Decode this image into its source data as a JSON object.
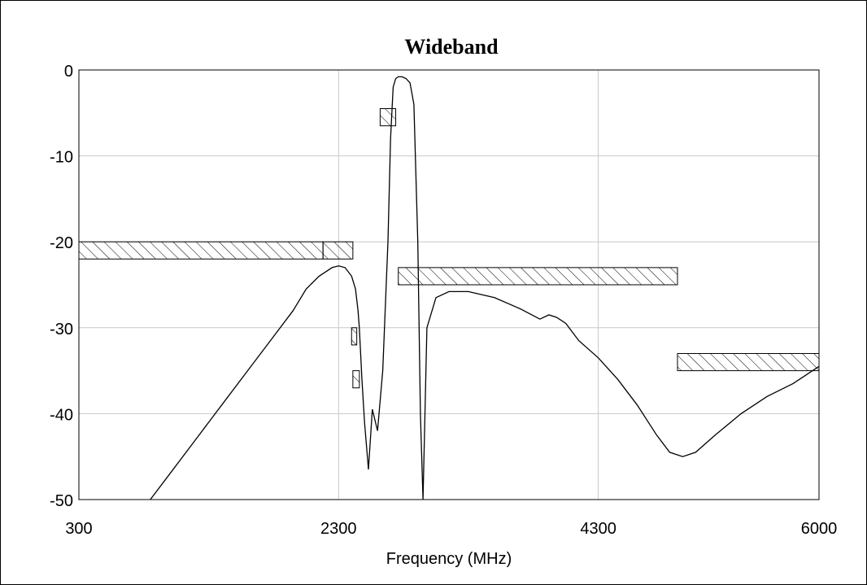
{
  "chart_data": {
    "type": "line",
    "title": "Wideband",
    "xlabel": "Frequency (MHz)",
    "ylabel": "",
    "xlim": [
      300,
      6000
    ],
    "ylim": [
      -50,
      0
    ],
    "x_ticks": [
      300,
      2300,
      4300,
      6000
    ],
    "y_ticks": [
      0,
      -10,
      -20,
      -30,
      -40,
      -50
    ],
    "grid": true,
    "legend": "none",
    "series": [
      {
        "x": [
          850,
          1000,
          1200,
          1400,
          1600,
          1800,
          1950,
          2050,
          2150,
          2200,
          2250,
          2300,
          2350,
          2400,
          2430,
          2450,
          2460,
          2470,
          2480,
          2500,
          2530,
          2560,
          2600,
          2640,
          2680,
          2700,
          2720,
          2740,
          2760,
          2790,
          2820,
          2850,
          2880,
          2910,
          2930,
          2950,
          2980,
          3050,
          3150,
          3300,
          3500,
          3700,
          3850,
          3920,
          3980,
          4050,
          4150,
          4300,
          4450,
          4600,
          4750,
          4850,
          4950,
          5050,
          5200,
          5400,
          5600,
          5800,
          6000
        ],
        "values": [
          -50,
          -47,
          -43,
          -39,
          -35,
          -31,
          -28,
          -25.5,
          -24,
          -23.5,
          -23,
          -22.8,
          -23,
          -24,
          -25.5,
          -28,
          -30,
          -33,
          -36,
          -41,
          -46.5,
          -39.5,
          -42,
          -35,
          -20,
          -8,
          -2,
          -1,
          -0.8,
          -0.8,
          -1,
          -1.5,
          -4,
          -20,
          -40,
          -50,
          -30,
          -26.5,
          -25.8,
          -25.8,
          -26.5,
          -27.8,
          -29,
          -28.5,
          -28.8,
          -29.5,
          -31.5,
          -33.5,
          -36,
          -39,
          -42.5,
          -44.5,
          -45,
          -44.5,
          -42.5,
          -40,
          -38,
          -36.5,
          -34.5
        ]
      }
    ],
    "mask_regions": [
      {
        "x1": 300,
        "x2": 2180,
        "y": -20,
        "h": 2
      },
      {
        "x1": 2180,
        "x2": 2410,
        "y": -20,
        "h": 2
      },
      {
        "x1": 2760,
        "x2": 4910,
        "y": -23,
        "h": 2
      },
      {
        "x1": 4910,
        "x2": 6000,
        "y": -33,
        "h": 2
      },
      {
        "x1": 2400,
        "x2": 2440,
        "y": -30,
        "h": 2
      },
      {
        "x1": 2410,
        "x2": 2460,
        "y": -35,
        "h": 2
      },
      {
        "x1": 2620,
        "x2": 2740,
        "y": -4.5,
        "h": 2
      }
    ]
  }
}
